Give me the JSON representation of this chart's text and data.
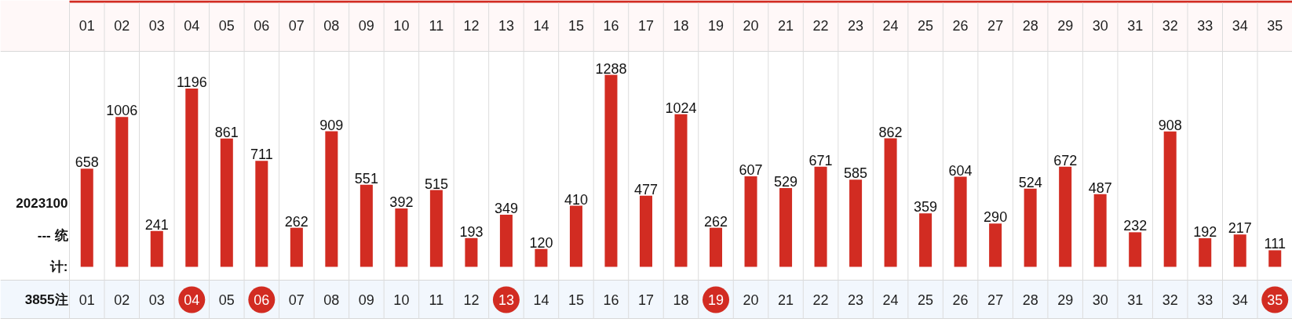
{
  "chart_data": {
    "type": "bar",
    "categories": [
      "01",
      "02",
      "03",
      "04",
      "05",
      "06",
      "07",
      "08",
      "09",
      "10",
      "11",
      "12",
      "13",
      "14",
      "15",
      "16",
      "17",
      "18",
      "19",
      "20",
      "21",
      "22",
      "23",
      "24",
      "25",
      "26",
      "27",
      "28",
      "29",
      "30",
      "31",
      "32",
      "33",
      "34",
      "35"
    ],
    "values": [
      658,
      1006,
      241,
      1196,
      861,
      711,
      262,
      909,
      551,
      392,
      515,
      193,
      349,
      120,
      410,
      1288,
      477,
      1024,
      262,
      607,
      529,
      671,
      585,
      862,
      359,
      604,
      290,
      524,
      672,
      487,
      232,
      908,
      192,
      217,
      111
    ],
    "color": "#d22c22",
    "data_labels": true,
    "grid": "x",
    "annotations": [
      "2023100",
      "--- 统",
      "计:",
      "3855注",
      "04",
      "06",
      "13",
      "19",
      "35"
    ]
  }
}
